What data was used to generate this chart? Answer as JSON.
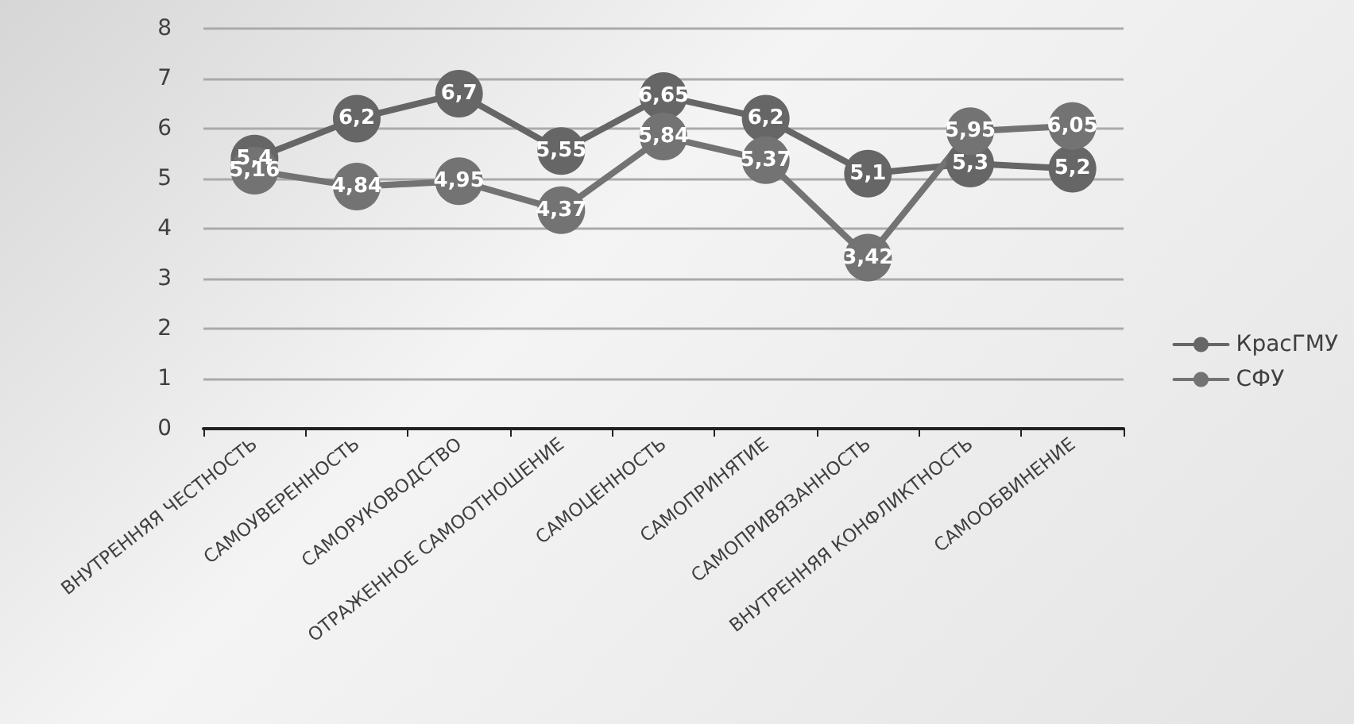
{
  "chart_data": {
    "type": "line",
    "categories": [
      "ВНУТРЕННЯЯ ЧЕСТНОСТЬ",
      "САМОУВЕРЕННОСТЬ",
      "САМОРУКОВОДСТВО",
      "ОТРАЖЕННОЕ САМООТНОШЕНИЕ",
      "САМОЦЕННОСТЬ",
      "САМОПРИНЯТИЕ",
      "САМОПРИВЯЗАННОСТЬ",
      "ВНУТРЕННЯЯ КОНФЛИКТНОСТЬ",
      "САМООБВИНЕНИЕ"
    ],
    "series": [
      {
        "name": "КрасГМУ",
        "color": "#666666",
        "values": [
          5.4,
          6.2,
          6.7,
          5.55,
          6.65,
          6.2,
          5.1,
          5.3,
          5.2
        ],
        "value_labels": [
          "5,4",
          "6,2",
          "6,7",
          "5,55",
          "6,65",
          "6,2",
          "5,1",
          "5,3",
          "5,2"
        ]
      },
      {
        "name": "СФУ",
        "color": "#737373",
        "values": [
          5.16,
          4.84,
          4.95,
          4.37,
          5.84,
          5.37,
          3.42,
          5.95,
          6.05
        ],
        "value_labels": [
          "5,16",
          "4,84",
          "4,95",
          "4,37",
          "5,84",
          "5,37",
          "3,42",
          "5,95",
          "6,05"
        ]
      }
    ],
    "ylim": [
      0,
      8
    ],
    "yticks": [
      0,
      1,
      2,
      3,
      4,
      5,
      6,
      7,
      8
    ],
    "grid": "y",
    "legend": "right",
    "marker": "circle",
    "line_style": "solid"
  }
}
